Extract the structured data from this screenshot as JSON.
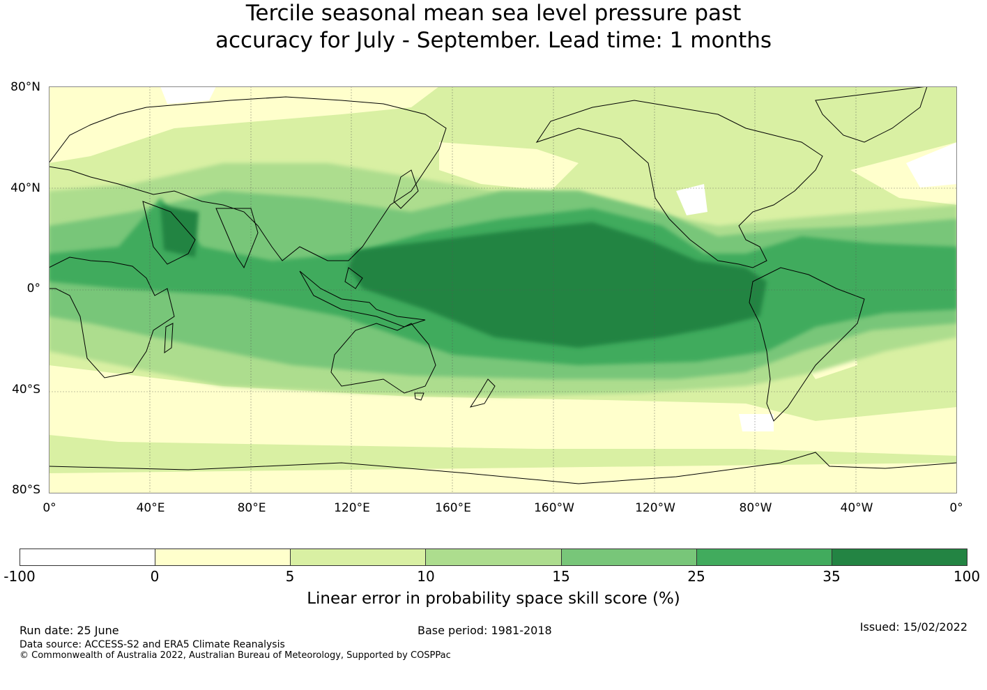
{
  "title": {
    "line1": "Tercile seasonal mean sea level pressure past",
    "line2": "accuracy for July - September. Lead time: 1 months"
  },
  "map": {
    "projection": "equirectangular",
    "lon_range": [
      0,
      360
    ],
    "lat_range": [
      -80,
      80
    ],
    "lat_labels": [
      "80°N",
      "40°N",
      "0°",
      "40°S",
      "80°S"
    ],
    "lon_labels": [
      "0°",
      "40°E",
      "80°E",
      "120°E",
      "160°E",
      "160°W",
      "120°W",
      "80°W",
      "40°W",
      "0°"
    ],
    "colors": {
      "ocean_base": "#d9f0a3",
      "band_light": "#ffffcc",
      "band_10": "#addd8e",
      "band_15": "#78c679",
      "band_25": "#41ab5d",
      "band_35": "#238443",
      "coast": "#000000",
      "grid": "#555555"
    }
  },
  "colorbar": {
    "ticks": [
      "-100",
      "0",
      "5",
      "10",
      "15",
      "25",
      "35",
      "100"
    ],
    "colors": [
      "#ffffff",
      "#ffffcc",
      "#d9f0a3",
      "#addd8e",
      "#78c679",
      "#41ab5d",
      "#238443"
    ],
    "label": "Linear error in probability space skill score (%)"
  },
  "footer": {
    "run_date": "Run date: 25 June",
    "base_period": "Base period: 1981-2018",
    "issued": "Issued: 15/02/2022",
    "data_source": "Data source: ACCESS-S2 and ERA5 Climate Reanalysis",
    "copyright": "© Commonwealth of Australia 2022, Australian Bureau of Meteorology, Supported by COSPPac"
  }
}
